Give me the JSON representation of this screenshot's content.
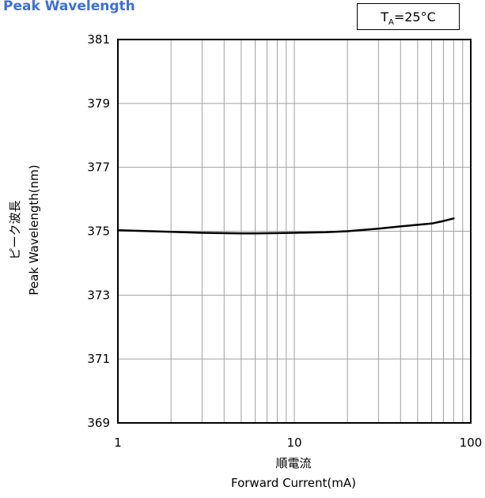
{
  "chart_data": {
    "type": "line",
    "title": "Peak Wavelength",
    "condition": {
      "symbol": "T",
      "subscript": "A",
      "value": "=25°C"
    },
    "xlabel_jp": "順電流",
    "xlabel": "Forward Current(mA)",
    "ylabel_jp": "ピーク波長",
    "ylabel": "Peak Wavelength(nm)",
    "xscale": "log",
    "xlim": [
      1,
      100
    ],
    "ylim": [
      369,
      381
    ],
    "x_ticks": [
      1,
      10,
      100
    ],
    "x_tick_labels": [
      "1",
      "10",
      "100"
    ],
    "y_ticks": [
      369,
      371,
      373,
      375,
      377,
      379,
      381
    ],
    "y_tick_labels": [
      "369",
      "371",
      "373",
      "375",
      "377",
      "379",
      "381"
    ],
    "grid": true,
    "series": [
      {
        "x": [
          1,
          2,
          3,
          5,
          6,
          8,
          10,
          15,
          20,
          30,
          40,
          50,
          60,
          70,
          80
        ],
        "y": [
          375.03,
          374.98,
          374.95,
          374.93,
          374.93,
          374.94,
          374.95,
          374.97,
          375.0,
          375.08,
          375.15,
          375.2,
          375.24,
          375.32,
          375.4
        ],
        "color": "#000000"
      }
    ]
  }
}
